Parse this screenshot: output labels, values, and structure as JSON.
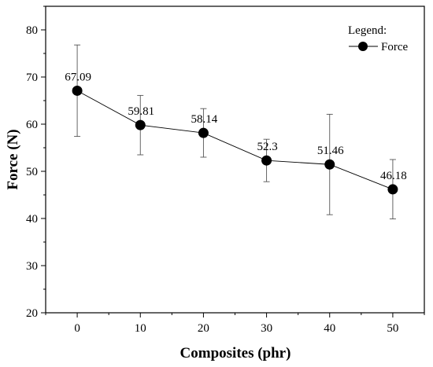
{
  "chart_data": {
    "type": "line",
    "xlabel": "Composites (phr)",
    "ylabel": "Force (N)",
    "xlim": [
      -5,
      55
    ],
    "ylim": [
      20,
      85
    ],
    "x_ticks": [
      0,
      10,
      20,
      30,
      40,
      50
    ],
    "y_ticks": [
      20,
      30,
      40,
      50,
      60,
      70,
      80
    ],
    "grid": false,
    "legend": {
      "title": "Legend:",
      "placement": "top-right"
    },
    "series": [
      {
        "name": "Force",
        "x": [
          0,
          10,
          20,
          30,
          40,
          50
        ],
        "y": [
          67.09,
          59.81,
          58.14,
          52.3,
          51.46,
          46.18
        ],
        "labels": [
          "67.09",
          "59.81",
          "58.14",
          "52.3",
          "51.46",
          "46.18"
        ],
        "error_low": [
          57.4,
          53.5,
          53.0,
          47.8,
          40.8,
          39.9
        ],
        "error_high": [
          76.8,
          66.1,
          63.3,
          56.8,
          62.1,
          52.5
        ],
        "color": "#000000"
      }
    ]
  }
}
